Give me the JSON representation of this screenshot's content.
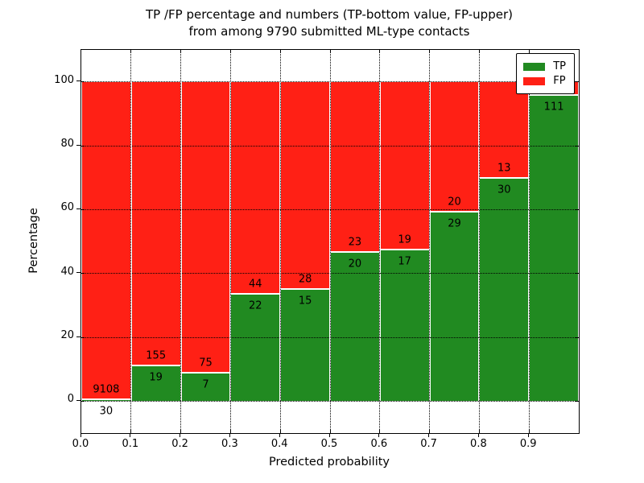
{
  "figure": {
    "title_line1": "TP /FP percentage and numbers (TP-bottom value, FP-upper)",
    "title_line2": "from among 9790 submitted ML-type contacts",
    "xlabel": "Predicted probability",
    "ylabel": "Percentage"
  },
  "legend": {
    "position": "upper right",
    "items": [
      {
        "label": "TP",
        "color": "#218a21"
      },
      {
        "label": "FP",
        "color": "#ff2015"
      }
    ]
  },
  "chart_data": {
    "type": "bar",
    "subtype": "stacked-percentage",
    "title": "TP /FP percentage and numbers (TP-bottom value, FP-upper) from among 9790 submitted ML-type contacts",
    "xlabel": "Predicted probability",
    "ylabel": "Percentage",
    "total_submitted_contacts": 9790,
    "xlim": [
      0.0,
      1.0
    ],
    "ylim": [
      -10,
      110
    ],
    "x_ticks": [
      "0.0",
      "0.1",
      "0.2",
      "0.3",
      "0.4",
      "0.5",
      "0.6",
      "0.7",
      "0.8",
      "0.9"
    ],
    "y_ticks": [
      0,
      20,
      40,
      60,
      80,
      100
    ],
    "grid": "dotted black, drawn above bars",
    "bar_edge_color": "#ffffff",
    "colors": {
      "tp": "#218a21",
      "fp": "#ff2015"
    },
    "bins": [
      {
        "range": [
          0.0,
          0.1
        ],
        "tp": 30,
        "fp": 9108,
        "tp_pct": 0.33,
        "tp_label_below_axis": true
      },
      {
        "range": [
          0.1,
          0.2
        ],
        "tp": 19,
        "fp": 155,
        "tp_pct": 10.92
      },
      {
        "range": [
          0.2,
          0.3
        ],
        "tp": 7,
        "fp": 75,
        "tp_pct": 8.54
      },
      {
        "range": [
          0.3,
          0.4
        ],
        "tp": 22,
        "fp": 44,
        "tp_pct": 33.33
      },
      {
        "range": [
          0.4,
          0.5
        ],
        "tp": 15,
        "fp": 28,
        "tp_pct": 34.88
      },
      {
        "range": [
          0.5,
          0.6
        ],
        "tp": 20,
        "fp": 23,
        "tp_pct": 46.51
      },
      {
        "range": [
          0.6,
          0.7
        ],
        "tp": 17,
        "fp": 19,
        "tp_pct": 47.22
      },
      {
        "range": [
          0.7,
          0.8
        ],
        "tp": 29,
        "fp": 20,
        "tp_pct": 59.18
      },
      {
        "range": [
          0.8,
          0.9
        ],
        "tp": 30,
        "fp": 13,
        "tp_pct": 69.77
      },
      {
        "range": [
          0.9,
          1.0
        ],
        "tp": 111,
        "fp": null,
        "tp_pct": 95.7,
        "fp_label_hidden_behind_legend": true
      }
    ]
  }
}
